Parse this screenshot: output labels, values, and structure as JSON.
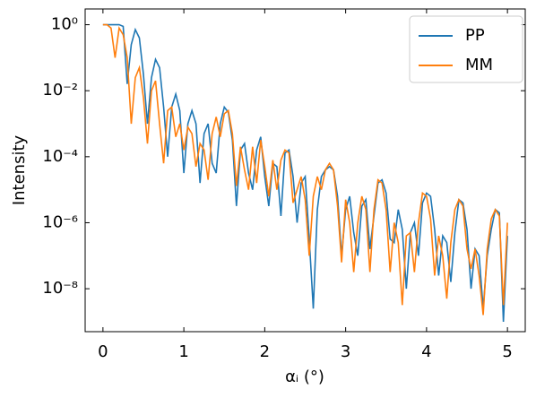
{
  "chart_data": {
    "type": "line",
    "x_label": "αᵢ (°)",
    "y_label": "Intensity",
    "yscale": "log",
    "legend": "upper right",
    "xlim": [
      -0.22,
      5.22
    ],
    "xticks": [
      0,
      1,
      2,
      3,
      4,
      5
    ],
    "ylim": [
      5e-10,
      3
    ],
    "yticks": [
      {
        "value": 1,
        "label": "10⁰"
      },
      {
        "value": 0.01,
        "label": "10⁻²"
      },
      {
        "value": 0.0001,
        "label": "10⁻⁴"
      },
      {
        "value": 1e-06,
        "label": "10⁻⁶"
      },
      {
        "value": 1e-08,
        "label": "10⁻⁸"
      }
    ],
    "x": [
      0,
      0.05,
      0.1,
      0.15,
      0.2,
      0.25,
      0.3,
      0.35,
      0.4,
      0.45,
      0.5,
      0.55,
      0.6,
      0.65,
      0.7,
      0.75,
      0.8,
      0.85,
      0.9,
      0.95,
      1,
      1.05,
      1.1,
      1.15,
      1.2,
      1.25,
      1.3,
      1.35,
      1.4,
      1.45,
      1.5,
      1.55,
      1.6,
      1.65,
      1.7,
      1.75,
      1.8,
      1.85,
      1.9,
      1.95,
      2,
      2.05,
      2.1,
      2.15,
      2.2,
      2.25,
      2.3,
      2.35,
      2.4,
      2.45,
      2.5,
      2.55,
      2.6,
      2.65,
      2.7,
      2.75,
      2.8,
      2.85,
      2.9,
      2.95,
      3,
      3.05,
      3.1,
      3.15,
      3.2,
      3.25,
      3.3,
      3.35,
      3.4,
      3.45,
      3.5,
      3.55,
      3.6,
      3.65,
      3.7,
      3.75,
      3.8,
      3.85,
      3.9,
      3.95,
      4,
      4.05,
      4.1,
      4.15,
      4.2,
      4.25,
      4.3,
      4.35,
      4.4,
      4.45,
      4.5,
      4.55,
      4.6,
      4.65,
      4.7,
      4.75,
      4.8,
      4.85,
      4.9,
      4.95,
      5
    ],
    "series": [
      {
        "name": "PP",
        "color": "#1f77b4",
        "values": [
          1,
          1,
          1,
          1,
          1,
          0.89,
          0.016,
          0.25,
          0.71,
          0.4,
          0.032,
          0.001,
          0.025,
          0.089,
          0.05,
          0.0032,
          0.0001,
          0.0032,
          0.0079,
          0.0025,
          3.2e-05,
          0.001,
          0.0025,
          0.001,
          1.6e-05,
          0.0005,
          0.001,
          6.3e-05,
          3.2e-05,
          0.001,
          0.0032,
          0.0022,
          0.00032,
          3.2e-06,
          0.00016,
          0.00025,
          3.2e-05,
          1e-05,
          0.00016,
          0.0004,
          2.5e-05,
          3.2e-06,
          6.3e-05,
          5e-05,
          1.6e-06,
          0.00013,
          0.00016,
          2.5e-05,
          1e-06,
          1.6e-05,
          2.5e-05,
          3.2e-07,
          2.5e-09,
          2.5e-06,
          2.5e-05,
          4e-05,
          5e-05,
          4e-05,
          6.3e-06,
          1e-07,
          2.5e-06,
          6.3e-06,
          5e-07,
          1e-07,
          3.2e-06,
          5e-06,
          1.6e-07,
          1.6e-06,
          1.6e-05,
          2e-05,
          7.9e-06,
          3.2e-07,
          2.5e-07,
          2.5e-06,
          6.3e-07,
          1e-08,
          5e-07,
          1e-06,
          1e-07,
          4e-06,
          7.9e-06,
          6.3e-06,
          6.3e-07,
          2.5e-08,
          4e-07,
          2.5e-07,
          1.6e-08,
          5e-07,
          5e-06,
          4e-06,
          6.3e-07,
          1e-08,
          1.6e-07,
          1e-07,
          2.5e-09,
          1e-07,
          6.3e-07,
          2.5e-06,
          2e-06,
          1e-09,
          4e-07
        ]
      },
      {
        "name": "MM",
        "color": "#ff7f0e",
        "values": [
          1,
          1,
          0.79,
          0.1,
          0.79,
          0.5,
          0.1,
          0.001,
          0.025,
          0.05,
          0.0063,
          0.00025,
          0.01,
          0.02,
          0.001,
          6.3e-05,
          0.0025,
          0.0032,
          0.0004,
          0.001,
          0.00016,
          0.00079,
          0.0005,
          5e-05,
          0.00025,
          0.00016,
          2e-05,
          0.0005,
          0.0016,
          0.0004,
          0.002,
          0.0025,
          0.0005,
          1.3e-05,
          0.0002,
          4e-05,
          1e-05,
          0.0002,
          1.6e-05,
          0.00032,
          5e-05,
          6.3e-06,
          7.9e-05,
          1e-05,
          7.9e-05,
          0.00016,
          0.00013,
          4e-06,
          1e-05,
          2.5e-05,
          5e-06,
          1e-07,
          6.3e-06,
          2.5e-05,
          1e-05,
          4e-05,
          6.3e-05,
          4e-05,
          3.2e-06,
          6.3e-08,
          5e-06,
          1e-06,
          3.2e-08,
          1e-06,
          6.3e-06,
          2.5e-06,
          3.2e-08,
          2.5e-06,
          2e-05,
          1.6e-05,
          2.5e-06,
          3.2e-08,
          1e-06,
          2.5e-07,
          3.2e-09,
          4e-07,
          5e-07,
          3.2e-08,
          1e-06,
          7.9e-06,
          6.3e-06,
          1.3e-06,
          2.5e-08,
          4e-07,
          1e-07,
          5e-09,
          2.5e-07,
          2.5e-06,
          5e-06,
          3.2e-06,
          1.6e-07,
          4e-08,
          1.6e-07,
          2.5e-08,
          1.6e-09,
          1.6e-07,
          1.3e-06,
          2.5e-06,
          1.6e-06,
          3.2e-09,
          1e-06
        ]
      }
    ]
  }
}
